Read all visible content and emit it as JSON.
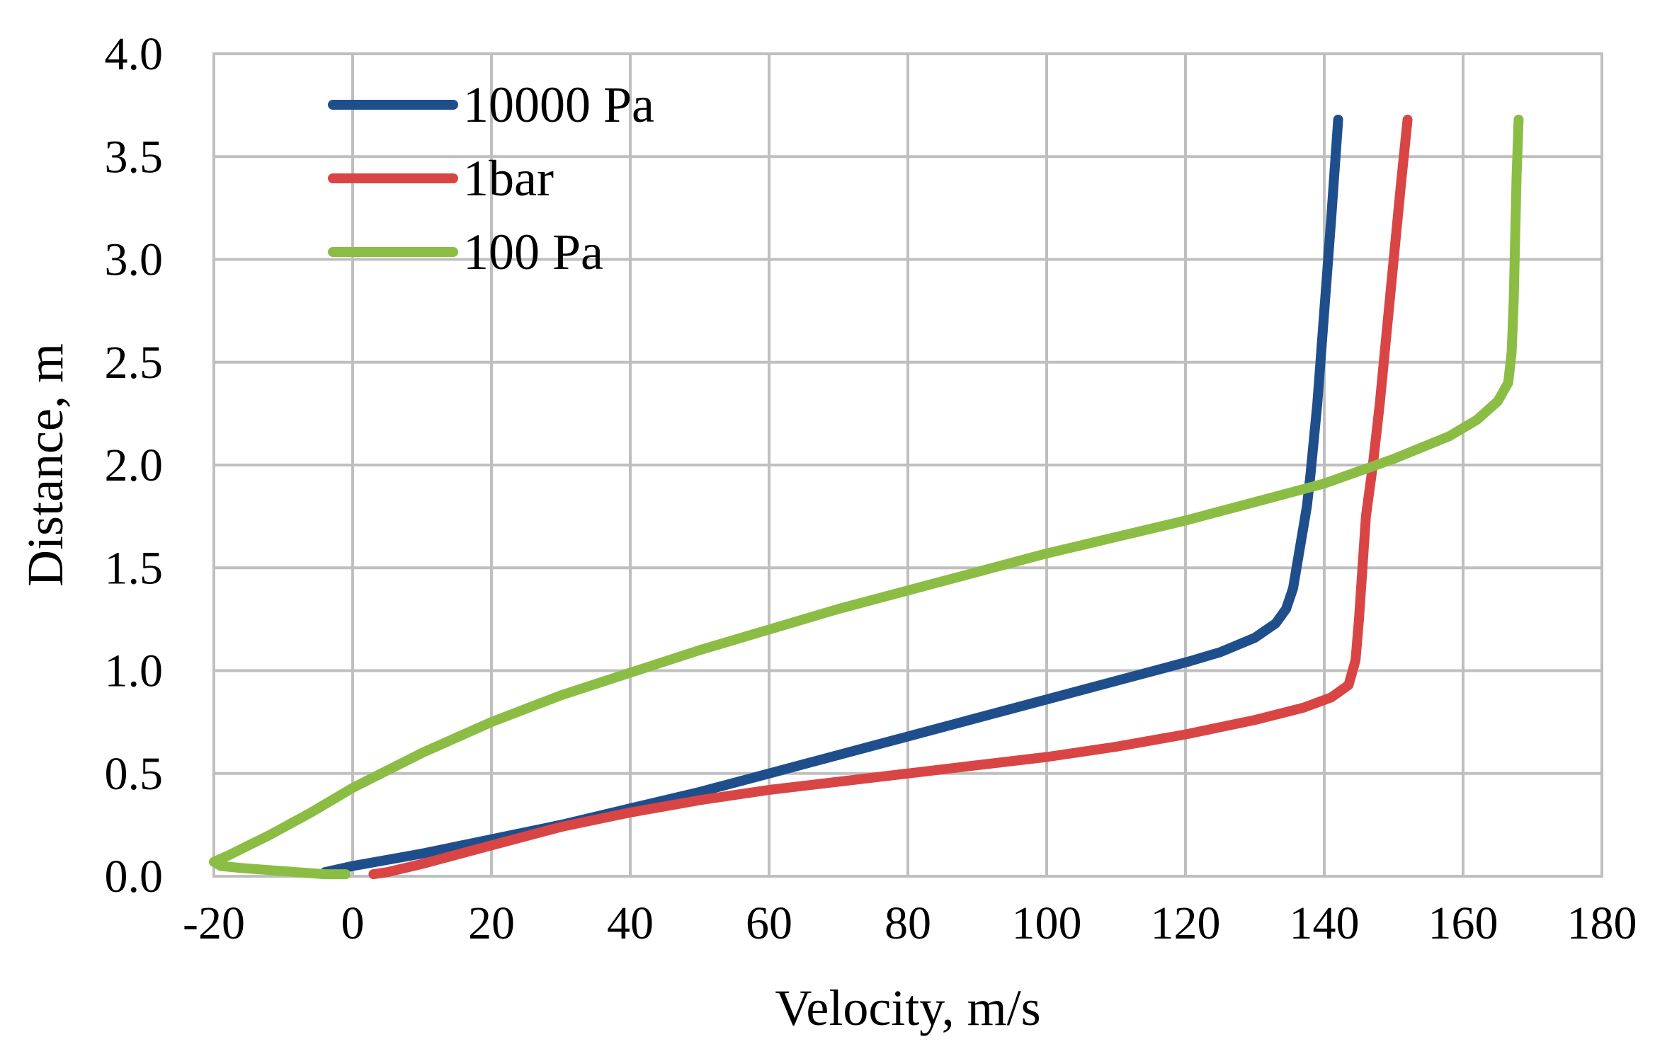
{
  "chart_data": {
    "type": "line",
    "title": "",
    "xlabel": "Velocity, m/s",
    "ylabel": "Distance, m",
    "xlim": [
      -20,
      180
    ],
    "ylim": [
      0,
      4
    ],
    "xticks": [
      "-20",
      "0",
      "20",
      "40",
      "60",
      "80",
      "100",
      "120",
      "140",
      "160",
      "180"
    ],
    "yticks": [
      "0.0",
      "0.5",
      "1.0",
      "1.5",
      "2.0",
      "2.5",
      "3.0",
      "3.5",
      "4.0"
    ],
    "grid": true,
    "legend_position": "top-left",
    "series": [
      {
        "name": "10000 Pa",
        "color": "#1f4e8c",
        "x": [
          -4,
          0,
          10,
          20,
          30,
          40,
          50,
          60,
          70,
          80,
          90,
          100,
          110,
          120,
          125,
          130,
          133,
          134.5,
          135.5,
          136,
          136.5,
          137,
          137.5,
          138,
          139,
          140,
          141,
          142
        ],
        "y": [
          0.02,
          0.05,
          0.11,
          0.18,
          0.25,
          0.33,
          0.41,
          0.5,
          0.59,
          0.68,
          0.77,
          0.86,
          0.95,
          1.04,
          1.09,
          1.16,
          1.23,
          1.3,
          1.4,
          1.5,
          1.6,
          1.7,
          1.8,
          1.95,
          2.3,
          2.75,
          3.2,
          3.68
        ]
      },
      {
        "name": "1bar",
        "color": "#d94545",
        "x": [
          3,
          5,
          10,
          20,
          30,
          40,
          50,
          60,
          70,
          80,
          90,
          100,
          110,
          120,
          130,
          137,
          141,
          143.5,
          144.5,
          145,
          145.5,
          146,
          147,
          148,
          149,
          150,
          151,
          152
        ],
        "y": [
          0.01,
          0.02,
          0.06,
          0.15,
          0.24,
          0.31,
          0.37,
          0.42,
          0.46,
          0.5,
          0.54,
          0.58,
          0.63,
          0.69,
          0.76,
          0.82,
          0.87,
          0.93,
          1.05,
          1.25,
          1.5,
          1.75,
          2.0,
          2.3,
          2.65,
          3.0,
          3.35,
          3.68
        ]
      },
      {
        "name": "100 Pa",
        "color": "#8bbd45",
        "x": [
          -1,
          -4,
          -8,
          -12,
          -16,
          -19,
          -20,
          -18,
          -12,
          -6,
          0,
          10,
          20,
          30,
          40,
          50,
          60,
          70,
          80,
          90,
          100,
          110,
          120,
          130,
          140,
          150,
          158,
          162,
          165,
          166.5,
          167,
          167.3,
          167.5,
          167.7,
          168
        ],
        "y": [
          0.01,
          0.01,
          0.02,
          0.03,
          0.04,
          0.05,
          0.07,
          0.1,
          0.2,
          0.31,
          0.43,
          0.6,
          0.75,
          0.88,
          0.99,
          1.1,
          1.2,
          1.3,
          1.39,
          1.48,
          1.57,
          1.65,
          1.73,
          1.82,
          1.91,
          2.03,
          2.14,
          2.22,
          2.31,
          2.4,
          2.55,
          2.8,
          3.1,
          3.4,
          3.68
        ]
      }
    ]
  }
}
